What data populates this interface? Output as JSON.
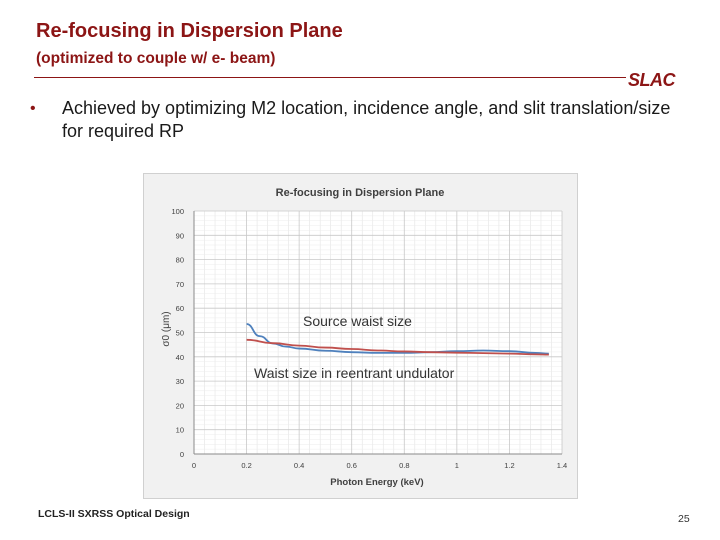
{
  "slide": {
    "title": "Re-focusing in Dispersion Plane",
    "subtitle": "(optimized to couple w/ e- beam)",
    "logo_text": "SLAC",
    "bullet": "Achieved by optimizing M2 location, incidence angle, and slit translation/size for required RP",
    "footer": "LCLS-II SXRSS Optical Design",
    "page_number": "25",
    "accent_color": "#8c1515"
  },
  "chart_data": {
    "type": "line",
    "title": "Re-focusing in Dispersion Plane",
    "xlabel": "Photon Energy (keV)",
    "ylabel": "σ0 (μm)",
    "xlim": [
      0,
      1.4
    ],
    "ylim": [
      0,
      100
    ],
    "x_ticks": [
      "0",
      "0.2",
      "0.4",
      "0.6",
      "0.8",
      "1",
      "1.2",
      "1.4"
    ],
    "y_ticks": [
      "0",
      "10",
      "20",
      "30",
      "40",
      "50",
      "60",
      "70",
      "80",
      "90",
      "100"
    ],
    "grid": true,
    "series": [
      {
        "color": "#4f81bd",
        "points": [
          [
            0.2,
            53.5
          ],
          [
            0.25,
            48.5
          ],
          [
            0.3,
            45.5
          ],
          [
            0.35,
            44.2
          ],
          [
            0.4,
            43.4
          ],
          [
            0.5,
            42.5
          ],
          [
            0.6,
            41.9
          ],
          [
            0.7,
            41.6
          ],
          [
            0.8,
            41.6
          ],
          [
            0.9,
            41.9
          ],
          [
            1.0,
            42.3
          ],
          [
            1.1,
            42.6
          ],
          [
            1.2,
            42.3
          ],
          [
            1.3,
            41.6
          ],
          [
            1.35,
            41.3
          ]
        ]
      },
      {
        "color": "#c0504d",
        "points": [
          [
            0.2,
            47.0
          ],
          [
            0.3,
            45.6
          ],
          [
            0.4,
            44.6
          ],
          [
            0.5,
            43.8
          ],
          [
            0.6,
            43.2
          ],
          [
            0.7,
            42.6
          ],
          [
            0.8,
            42.2
          ],
          [
            0.9,
            41.9
          ],
          [
            1.0,
            41.7
          ],
          [
            1.1,
            41.5
          ],
          [
            1.2,
            41.3
          ],
          [
            1.3,
            41.0
          ],
          [
            1.35,
            40.9
          ]
        ]
      }
    ],
    "annotations": [
      {
        "text": "Source waist size"
      },
      {
        "text": "Waist size in reentrant undulator"
      }
    ]
  }
}
